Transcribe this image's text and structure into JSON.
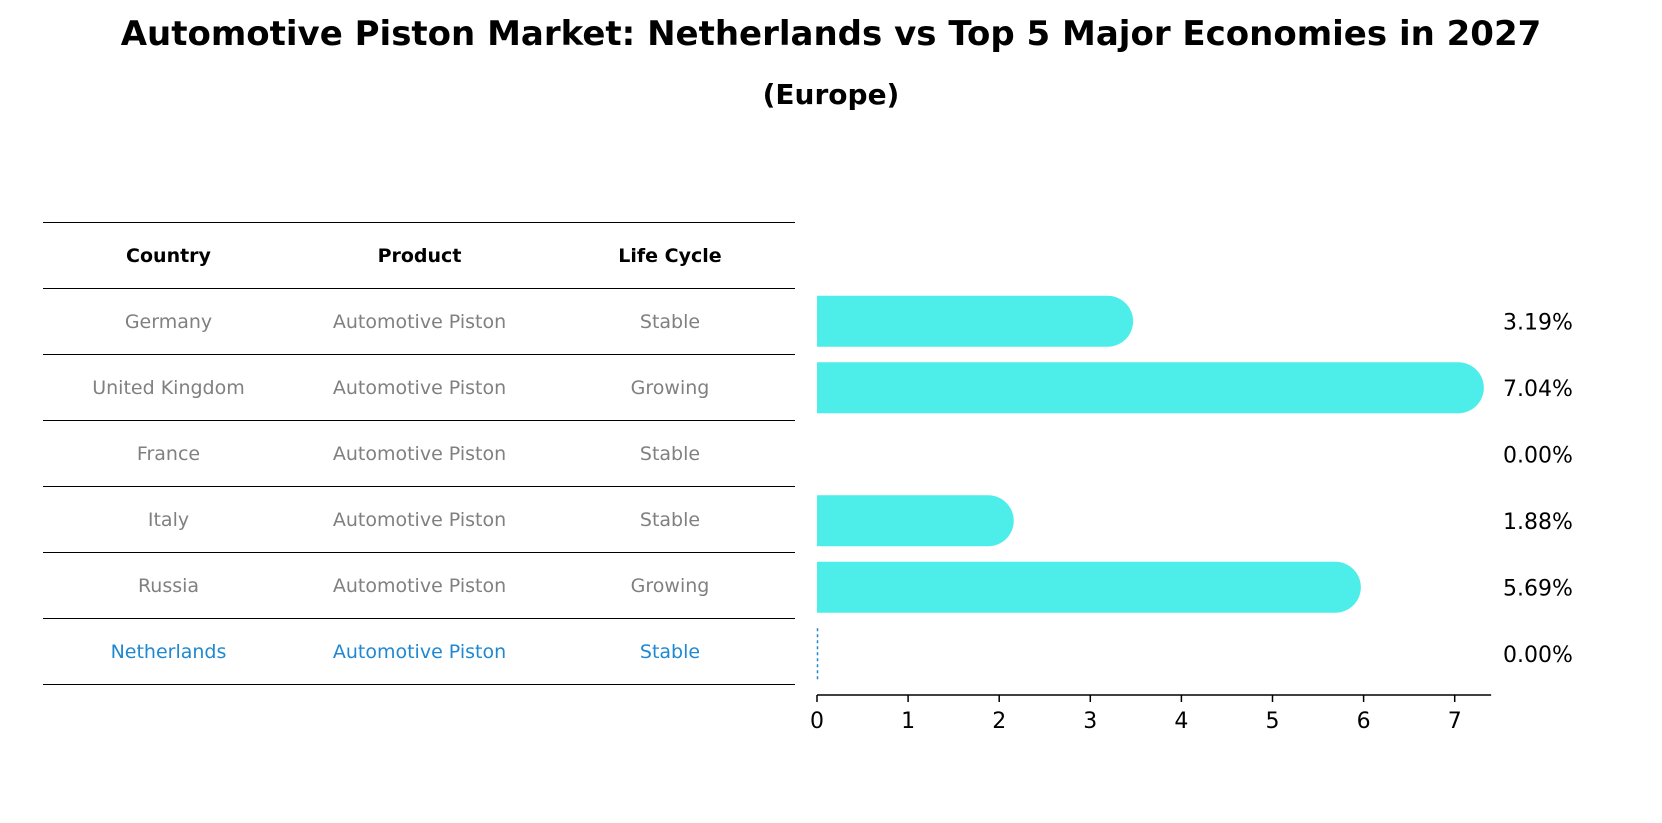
{
  "chart_data": {
    "type": "bar",
    "orientation": "horizontal",
    "title": "Automotive Piston Market: Netherlands vs Top 5 Major Economies in 2027",
    "subtitle": "(Europe)",
    "table_headers": [
      "Country",
      "Product",
      "Life Cycle"
    ],
    "rows": [
      {
        "country": "Germany",
        "product": "Automotive Piston",
        "life_cycle": "Stable"
      },
      {
        "country": "United Kingdom",
        "product": "Automotive Piston",
        "life_cycle": "Growing"
      },
      {
        "country": "France",
        "product": "Automotive Piston",
        "life_cycle": "Stable"
      },
      {
        "country": "Italy",
        "product": "Automotive Piston",
        "life_cycle": "Stable"
      },
      {
        "country": "Russia",
        "product": "Automotive Piston",
        "life_cycle": "Growing"
      },
      {
        "country": "Netherlands",
        "product": "Automotive Piston",
        "life_cycle": "Stable"
      }
    ],
    "categories": [
      "Germany",
      "United Kingdom",
      "France",
      "Italy",
      "Russia",
      "Netherlands"
    ],
    "values": [
      3.19,
      7.04,
      0.0,
      1.88,
      5.69,
      0.0
    ],
    "value_labels": [
      "3.19%",
      "7.04%",
      "0.00%",
      "1.88%",
      "5.69%",
      "0.00%"
    ],
    "highlight_category": "Netherlands",
    "xlim": [
      0,
      7.4
    ],
    "xticks": [
      0,
      1,
      2,
      3,
      4,
      5,
      6,
      7
    ],
    "xlabel": "",
    "ylabel": "",
    "grid": false,
    "colors": {
      "bar": "#4deeea",
      "highlight": "#1f88d1",
      "text_muted": "#808080",
      "axis": "#000000"
    }
  }
}
